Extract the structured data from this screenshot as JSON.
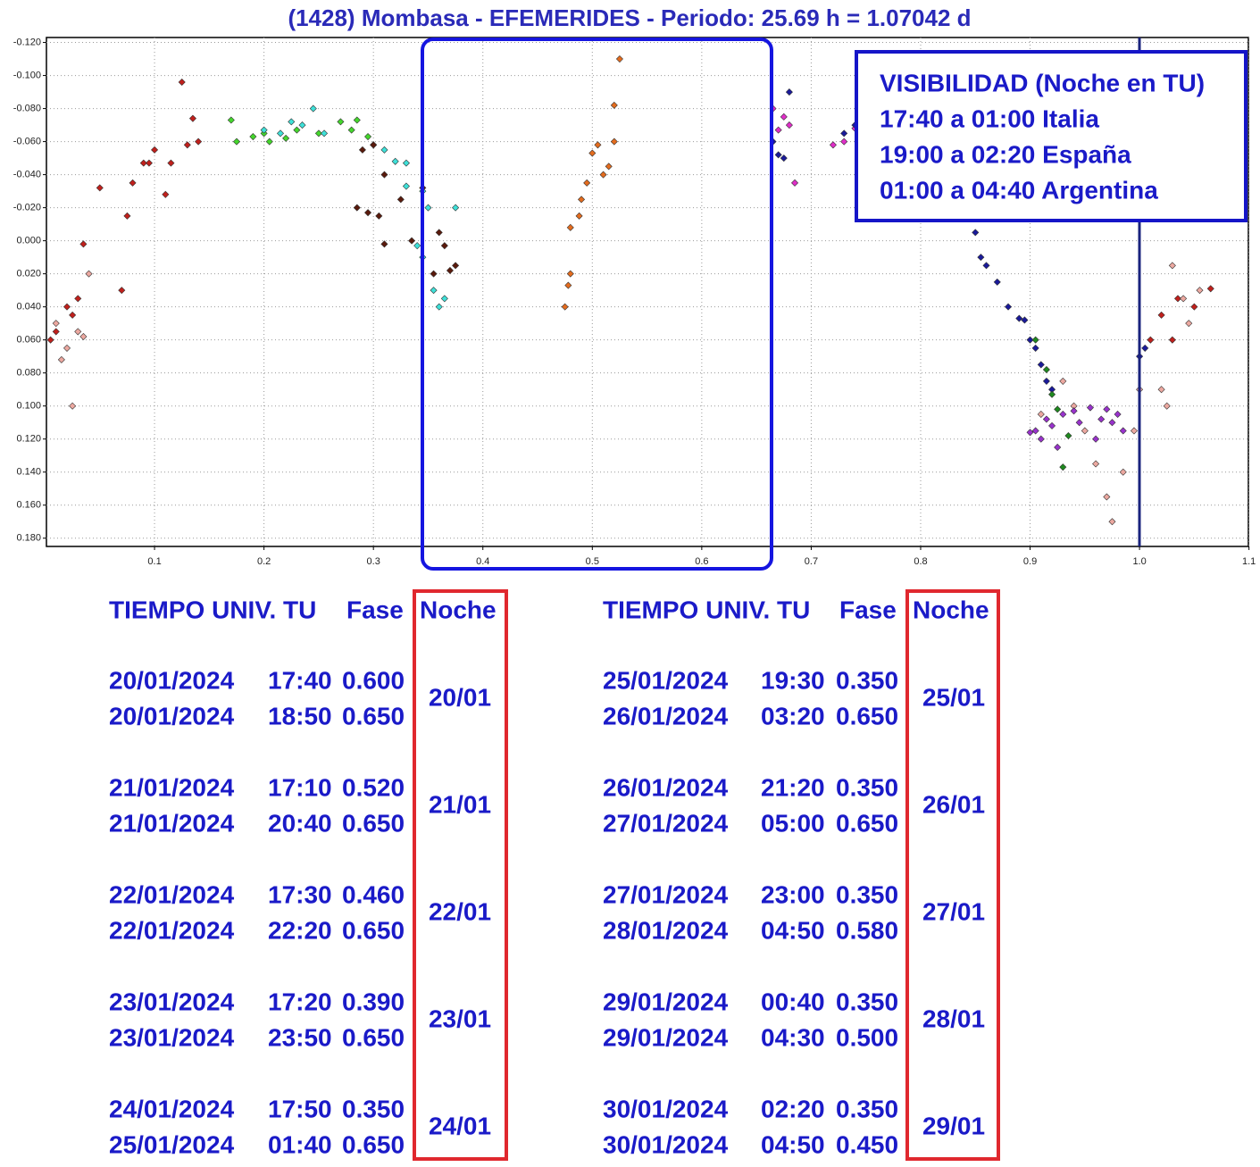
{
  "chart_data": {
    "type": "scatter",
    "title": "(1428) Mombasa - EFEMERIDES - Periodo: 25.69 h = 1.07042 d",
    "xlim": [
      0,
      1.1
    ],
    "xticks": [
      0.1,
      0.2,
      0.3,
      0.4,
      0.5,
      0.6,
      0.7,
      0.8,
      0.9,
      {
        "value": 1,
        "label": "1.0"
      },
      1.1
    ],
    "ylim": [
      -0.123,
      0.185
    ],
    "y_inverted": true,
    "yticks": [
      {
        "value": -0.12,
        "label": "-0.120"
      },
      {
        "value": -0.1,
        "label": "-0.100"
      },
      {
        "value": -0.08,
        "label": "-0.080"
      },
      {
        "value": -0.06,
        "label": "-0.060"
      },
      {
        "value": -0.04,
        "label": "-0.040"
      },
      {
        "value": -0.02,
        "label": "-0.020"
      },
      {
        "value": 0,
        "label": "0.000"
      },
      {
        "value": 0.02,
        "label": "0.020"
      },
      {
        "value": 0.04,
        "label": "0.040"
      },
      {
        "value": 0.06,
        "label": "0.060"
      },
      {
        "value": 0.08,
        "label": "0.080"
      },
      {
        "value": 0.1,
        "label": "0.100"
      },
      {
        "value": 0.12,
        "label": "0.120"
      },
      {
        "value": 0.14,
        "label": "0.140"
      },
      {
        "value": 0.16,
        "label": "0.160"
      },
      {
        "value": 0.18,
        "label": "0.180"
      }
    ],
    "grid": true,
    "series": [
      {
        "color": "#c0201c",
        "x": [
          0.005,
          0.01,
          0.02,
          0.025,
          0.03,
          0.035,
          0.05,
          0.07,
          0.075,
          0.08,
          0.09,
          0.095,
          0.1,
          0.11,
          0.115,
          0.125,
          0.13,
          0.14,
          0.135,
          1.01,
          1.02,
          1.03,
          1.035,
          1.05,
          1.065
        ],
        "values": [
          0.06,
          0.055,
          0.04,
          0.045,
          0.035,
          0.002,
          -0.032,
          0.03,
          -0.015,
          -0.035,
          -0.047,
          -0.047,
          -0.055,
          -0.028,
          -0.047,
          -0.096,
          -0.058,
          -0.06,
          -0.074,
          0.06,
          0.045,
          0.06,
          0.035,
          0.04,
          0.029
        ]
      },
      {
        "color": "#eca8a0",
        "x": [
          0.01,
          0.015,
          0.02,
          0.025,
          0.03,
          0.04,
          0.035,
          1.0,
          1.02,
          1.025,
          1.03,
          1.04,
          1.055,
          1.045,
          0.96,
          0.97,
          0.975,
          0.985,
          0.995,
          0.94,
          0.95,
          0.93,
          0.91
        ],
        "values": [
          0.05,
          0.072,
          0.065,
          0.1,
          0.055,
          0.02,
          0.058,
          0.09,
          0.09,
          0.1,
          0.015,
          0.035,
          0.03,
          0.05,
          0.135,
          0.155,
          0.17,
          0.14,
          0.115,
          0.1,
          0.115,
          0.085,
          0.105
        ]
      },
      {
        "color": "#44d62c",
        "x": [
          0.17,
          0.175,
          0.19,
          0.2,
          0.205,
          0.22,
          0.23,
          0.25,
          0.27,
          0.28,
          0.285,
          0.295
        ],
        "values": [
          -0.073,
          -0.06,
          -0.063,
          -0.065,
          -0.06,
          -0.062,
          -0.067,
          -0.065,
          -0.072,
          -0.067,
          -0.073,
          -0.063
        ]
      },
      {
        "color": "#3ee0d8",
        "x": [
          0.2,
          0.215,
          0.225,
          0.235,
          0.245,
          0.255,
          0.3,
          0.31,
          0.32,
          0.33,
          0.345,
          0.33,
          0.35,
          0.34,
          0.345,
          0.355,
          0.36,
          0.375,
          0.365
        ],
        "values": [
          -0.067,
          -0.065,
          -0.072,
          -0.07,
          -0.08,
          -0.065,
          -0.058,
          -0.055,
          -0.048,
          -0.047,
          -0.03,
          -0.033,
          -0.02,
          0.003,
          0.01,
          0.03,
          0.04,
          -0.02,
          0.035
        ]
      },
      {
        "color": "#5a1a0c",
        "x": [
          0.29,
          0.3,
          0.31,
          0.285,
          0.295,
          0.305,
          0.31,
          0.325,
          0.335,
          0.345,
          0.36,
          0.365,
          0.37,
          0.355,
          0.375
        ],
        "values": [
          -0.055,
          -0.058,
          -0.04,
          -0.02,
          -0.017,
          -0.015,
          0.002,
          -0.025,
          0,
          -0.032,
          -0.005,
          0.003,
          0.018,
          0.02,
          0.015
        ]
      },
      {
        "color": "#e46c1e",
        "x": [
          0.475,
          0.478,
          0.48,
          0.48,
          0.488,
          0.49,
          0.495,
          0.5,
          0.505,
          0.51,
          0.515,
          0.52,
          0.52,
          0.525
        ],
        "values": [
          0.04,
          0.027,
          0.02,
          -0.008,
          -0.015,
          -0.025,
          -0.035,
          -0.053,
          -0.058,
          -0.04,
          -0.045,
          -0.06,
          -0.082,
          -0.11
        ]
      },
      {
        "color": "#e02ec8",
        "x": [
          0.665,
          0.675,
          0.68,
          0.67,
          0.685,
          0.72,
          0.73,
          0.74,
          0.75
        ],
        "values": [
          -0.08,
          -0.075,
          -0.07,
          -0.067,
          -0.035,
          -0.058,
          -0.06,
          -0.068,
          -0.085
        ]
      },
      {
        "color": "#1a1a9a",
        "x": [
          0.665,
          0.67,
          0.675,
          0.68,
          0.73,
          0.74,
          0.745,
          0.85,
          0.855,
          0.86,
          0.87,
          0.88,
          0.89,
          0.895,
          0.9,
          0.905,
          0.91,
          0.915,
          0.92,
          1.0,
          1.005
        ],
        "values": [
          -0.06,
          -0.052,
          -0.05,
          -0.09,
          -0.065,
          -0.07,
          -0.04,
          -0.005,
          0.01,
          0.015,
          0.025,
          0.04,
          0.047,
          0.048,
          0.06,
          0.065,
          0.075,
          0.085,
          0.09,
          0.07,
          0.065
        ]
      },
      {
        "color": "#1f8a1f",
        "x": [
          0.905,
          0.915,
          0.92,
          0.925,
          0.93,
          0.935
        ],
        "values": [
          0.06,
          0.078,
          0.093,
          0.102,
          0.137,
          0.118
        ]
      },
      {
        "color": "#9932cc",
        "x": [
          0.9,
          0.905,
          0.91,
          0.915,
          0.92,
          0.93,
          0.94,
          0.945,
          0.955,
          0.965,
          0.97,
          0.975,
          0.98,
          0.925,
          0.96,
          0.985
        ],
        "values": [
          0.116,
          0.115,
          0.12,
          0.108,
          0.112,
          0.105,
          0.103,
          0.11,
          0.101,
          0.108,
          0.102,
          0.11,
          0.105,
          0.125,
          0.12,
          0.115
        ]
      }
    ]
  },
  "visibility": [
    "VISIBILIDAD (Noche en TU)",
    "17:40 a 01:00 Italia",
    "19:00 a 02:20 España",
    "01:00 a 04:40 Argentina"
  ],
  "tables": [
    {
      "header": [
        "TIEMPO UNIV. TU",
        "Fase",
        "Noche"
      ],
      "groups": [
        {
          "noche": "20/01",
          "rows": [
            [
              "20/01/2024",
              "17:40",
              "0.600"
            ],
            [
              "20/01/2024",
              "18:50",
              "0.650"
            ]
          ]
        },
        {
          "noche": "21/01",
          "rows": [
            [
              "21/01/2024",
              "17:10",
              "0.520"
            ],
            [
              "21/01/2024",
              "20:40",
              "0.650"
            ]
          ]
        },
        {
          "noche": "22/01",
          "rows": [
            [
              "22/01/2024",
              "17:30",
              "0.460"
            ],
            [
              "22/01/2024",
              "22:20",
              "0.650"
            ]
          ]
        },
        {
          "noche": "23/01",
          "rows": [
            [
              "23/01/2024",
              "17:20",
              "0.390"
            ],
            [
              "23/01/2024",
              "23:50",
              "0.650"
            ]
          ]
        },
        {
          "noche": "24/01",
          "rows": [
            [
              "24/01/2024",
              "17:50",
              "0.350"
            ],
            [
              "25/01/2024",
              "01:40",
              "0.650"
            ]
          ]
        }
      ]
    },
    {
      "header": [
        "TIEMPO UNIV. TU",
        "Fase",
        "Noche"
      ],
      "groups": [
        {
          "noche": "25/01",
          "rows": [
            [
              "25/01/2024",
              "19:30",
              "0.350"
            ],
            [
              "26/01/2024",
              "03:20",
              "0.650"
            ]
          ]
        },
        {
          "noche": "26/01",
          "rows": [
            [
              "26/01/2024",
              "21:20",
              "0.350"
            ],
            [
              "27/01/2024",
              "05:00",
              "0.650"
            ]
          ]
        },
        {
          "noche": "27/01",
          "rows": [
            [
              "27/01/2024",
              "23:00",
              "0.350"
            ],
            [
              "28/01/2024",
              "04:50",
              "0.580"
            ]
          ]
        },
        {
          "noche": "28/01",
          "rows": [
            [
              "29/01/2024",
              "00:40",
              "0.350"
            ],
            [
              "29/01/2024",
              "04:30",
              "0.500"
            ]
          ]
        },
        {
          "noche": "29/01",
          "rows": [
            [
              "30/01/2024",
              "02:20",
              "0.350"
            ],
            [
              "30/01/2024",
              "04:50",
              "0.450"
            ]
          ]
        }
      ]
    }
  ]
}
